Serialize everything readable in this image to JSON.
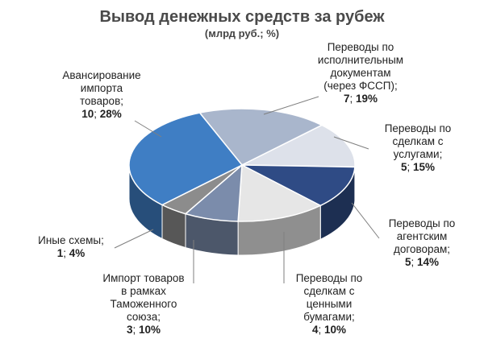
{
  "chart_data": {
    "type": "pie",
    "title": "Вывод денежных средств за рубеж",
    "subtitle": "(млрд руб.; %)",
    "slices": [
      {
        "label_lines": [
          "Переводы по",
          "исполнительным",
          "документам",
          "(через ФССП);"
        ],
        "value": 7,
        "percent": "19%",
        "color": "#a9b6cc"
      },
      {
        "label_lines": [
          "Переводы по",
          "сделкам с",
          "услугами;"
        ],
        "value": 5,
        "percent": "15%",
        "color": "#dde1ea"
      },
      {
        "label_lines": [
          "Переводы по",
          "агентским",
          "договорам;"
        ],
        "value": 5,
        "percent": "14%",
        "color": "#2f4b85"
      },
      {
        "label_lines": [
          "Переводы по",
          "сделкам с",
          "ценными",
          "бумагами;"
        ],
        "value": 4,
        "percent": "10%",
        "color": "#e6e6e6"
      },
      {
        "label_lines": [
          "Импорт товаров",
          "в рамках",
          "Таможенного",
          "союза;"
        ],
        "value": 3,
        "percent": "10%",
        "color": "#7b8cab"
      },
      {
        "label_lines": [
          "Иные схемы;"
        ],
        "value": 1,
        "percent": "4%",
        "color": "#8c8c8c"
      },
      {
        "label_lines": [
          "Авансирование",
          "импорта",
          "товаров;"
        ],
        "value": 10,
        "percent": "28%",
        "color": "#3f7ec4"
      }
    ]
  }
}
